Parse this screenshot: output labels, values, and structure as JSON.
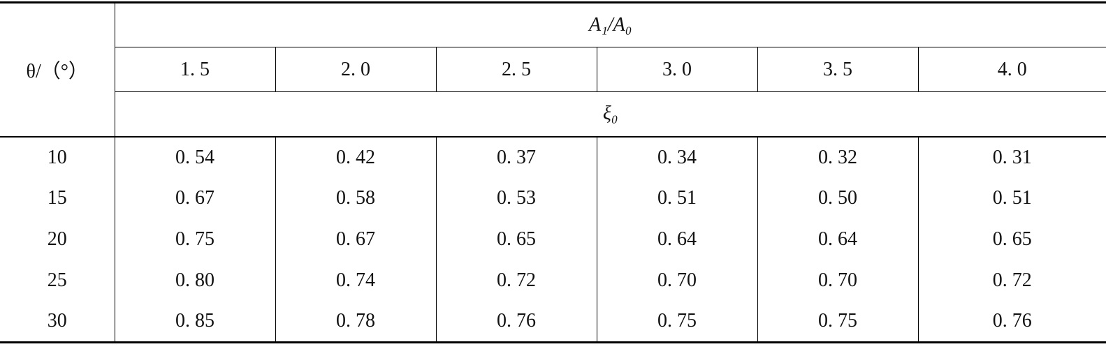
{
  "table": {
    "header": {
      "row_label": "θ/（°）",
      "group_label": "A₁/A₀",
      "columns": [
        "1. 5",
        "2. 0",
        "2. 5",
        "3. 0",
        "3. 5",
        "4. 0"
      ],
      "value_label": "ξ₀"
    },
    "rows": [
      {
        "label": "10",
        "values": [
          "0. 54",
          "0. 42",
          "0. 37",
          "0. 34",
          "0. 32",
          "0. 31"
        ]
      },
      {
        "label": "15",
        "values": [
          "0. 67",
          "0. 58",
          "0. 53",
          "0. 51",
          "0. 50",
          "0. 51"
        ]
      },
      {
        "label": "20",
        "values": [
          "0. 75",
          "0. 67",
          "0. 65",
          "0. 64",
          "0. 64",
          "0. 65"
        ]
      },
      {
        "label": "25",
        "values": [
          "0. 80",
          "0. 74",
          "0. 72",
          "0. 70",
          "0. 70",
          "0. 72"
        ]
      },
      {
        "label": "30",
        "values": [
          "0. 85",
          "0. 78",
          "0. 76",
          "0. 75",
          "0. 75",
          "0. 76"
        ]
      }
    ]
  }
}
